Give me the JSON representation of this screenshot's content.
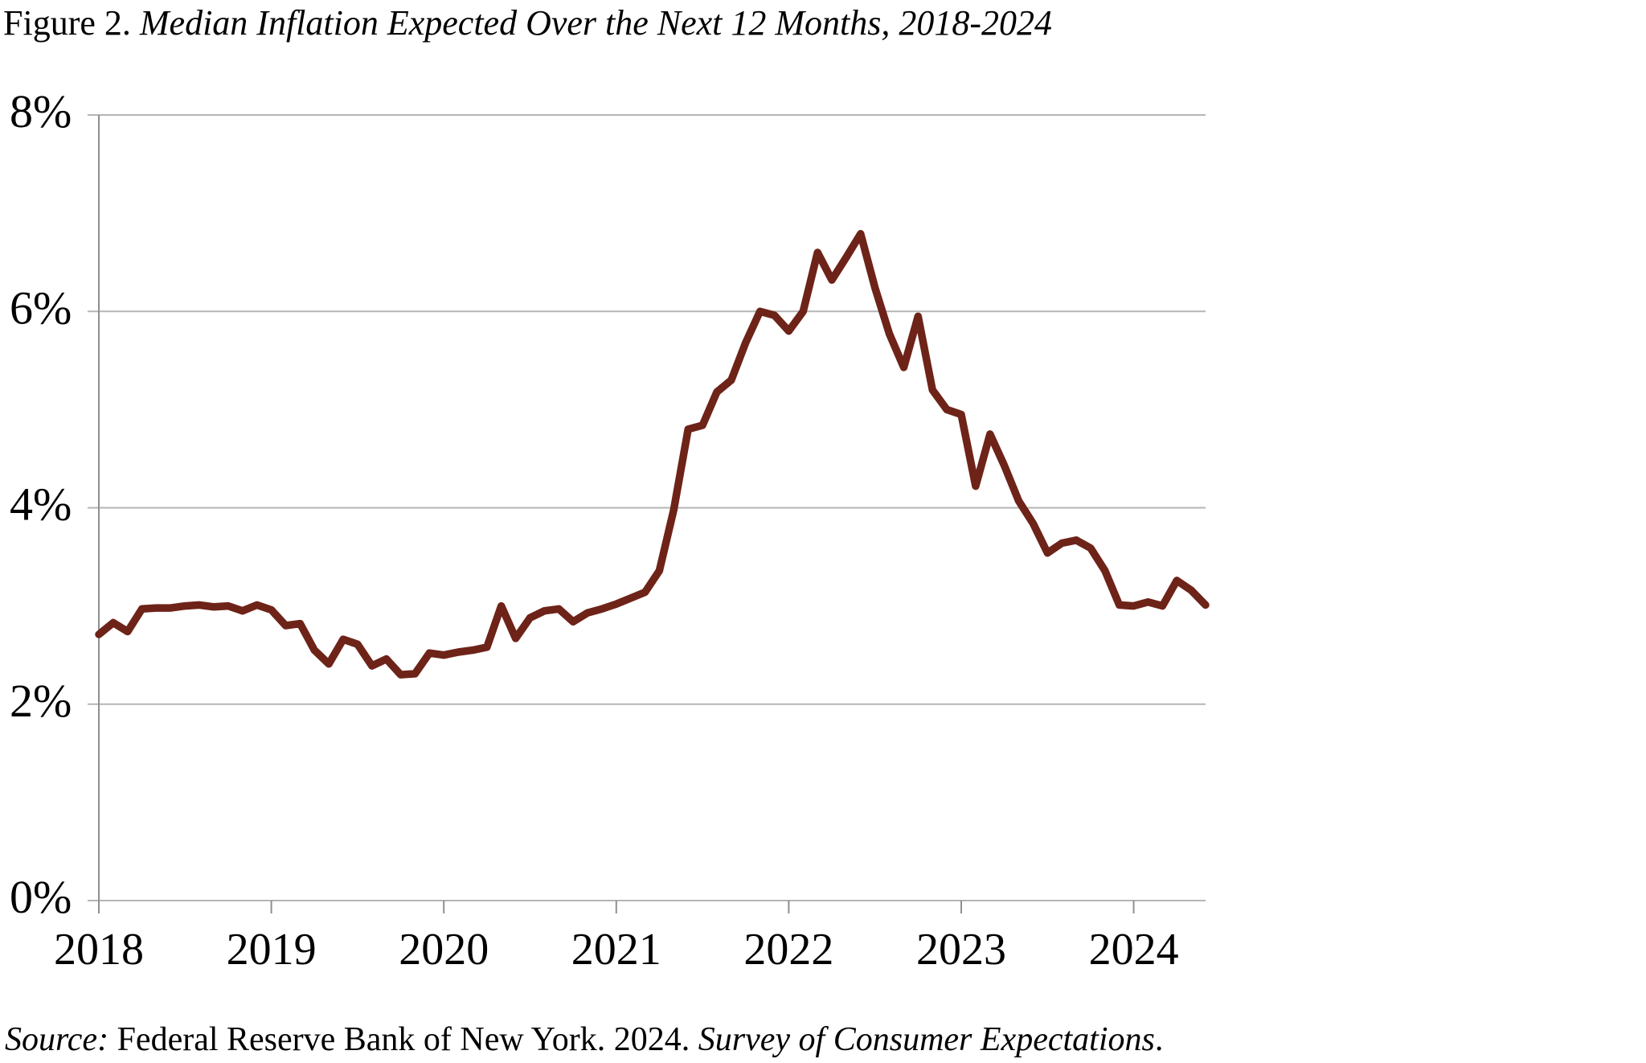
{
  "title": {
    "prefix": "Figure 2.",
    "main": " Median Inflation Expected Over the Next 12 Months, 2018-2024"
  },
  "source": {
    "label": "Source:",
    "text_1": " Federal Reserve Bank of New York. 2024. ",
    "italic": "Survey of Consumer Expectations",
    "text_2": "."
  },
  "chart_data": {
    "type": "line",
    "title": "Figure 2. Median Inflation Expected Over the Next 12 Months, 2018-2024",
    "xlabel": "",
    "ylabel": "",
    "ylim": [
      0,
      8
    ],
    "grid": "horizontal",
    "legend": "none",
    "y_ticks": [
      0,
      2,
      4,
      6,
      8
    ],
    "y_tick_labels": [
      "0%",
      "2%",
      "4%",
      "6%",
      "8%"
    ],
    "x_tick_labels": [
      "2018",
      "2019",
      "2020",
      "2021",
      "2022",
      "2023",
      "2024"
    ],
    "frequency": "monthly",
    "start": "2018-01",
    "end": "2024-06",
    "line_color": "#6e2319",
    "grid_color": "#b5b5b5",
    "axis_color": "#8f8f8f",
    "series": [
      {
        "name": "Median expected inflation over next 12 months",
        "values": [
          2.71,
          2.83,
          2.74,
          2.97,
          2.98,
          2.98,
          3.0,
          3.01,
          2.99,
          3.0,
          2.95,
          3.01,
          2.96,
          2.8,
          2.82,
          2.55,
          2.41,
          2.66,
          2.61,
          2.39,
          2.46,
          2.3,
          2.31,
          2.52,
          2.5,
          2.53,
          2.55,
          2.58,
          3.0,
          2.67,
          2.88,
          2.95,
          2.97,
          2.84,
          2.93,
          2.97,
          3.02,
          3.08,
          3.14,
          3.36,
          3.98,
          4.8,
          4.84,
          5.18,
          5.3,
          5.68,
          6.0,
          5.96,
          5.8,
          6.0,
          6.6,
          6.32,
          6.55,
          6.79,
          6.24,
          5.77,
          5.43,
          5.95,
          5.2,
          5.0,
          4.95,
          4.22,
          4.75,
          4.43,
          4.07,
          3.84,
          3.54,
          3.64,
          3.67,
          3.59,
          3.36,
          3.01,
          3.0,
          3.04,
          3.0,
          3.26,
          3.16,
          3.01
        ]
      }
    ]
  }
}
